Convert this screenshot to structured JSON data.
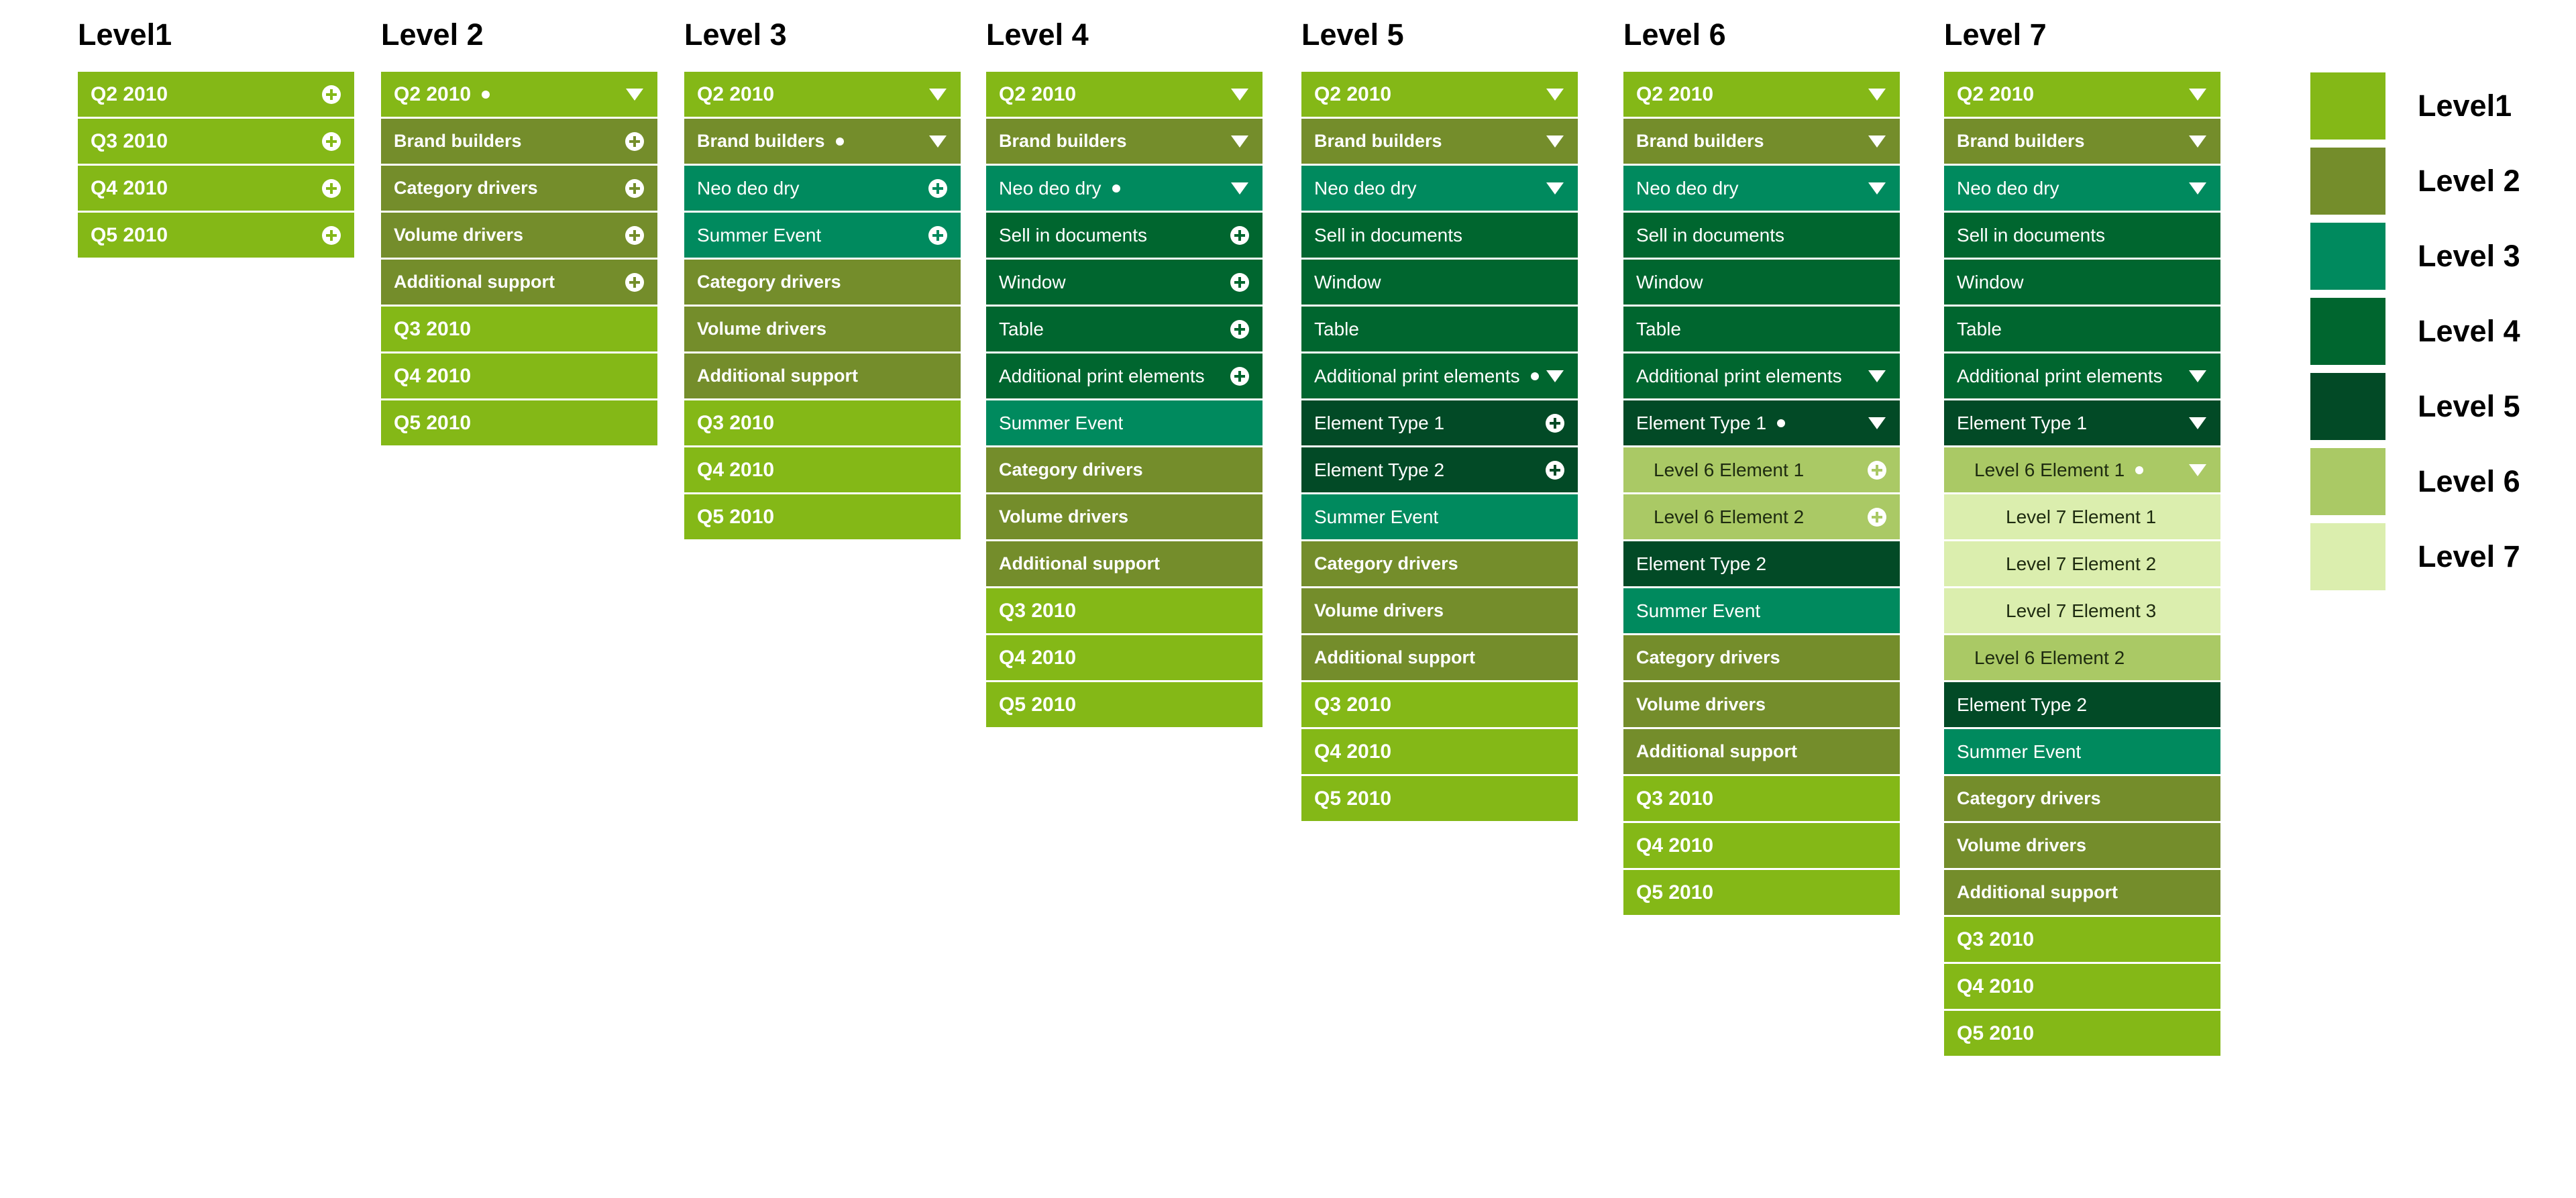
{
  "colors": {
    "level1": "#84b817",
    "level2": "#748d2b",
    "level3": "#008a5e",
    "level4": "#00662f",
    "level5": "#024a26",
    "level6": "#aac965",
    "level7": "#dbeeae"
  },
  "columns": [
    {
      "title": "Level1",
      "items": [
        {
          "label": "Q2 2010",
          "level": 1,
          "icon": "plus-icon"
        },
        {
          "label": "Q3 2010",
          "level": 1,
          "icon": "plus-icon"
        },
        {
          "label": "Q4 2010",
          "level": 1,
          "icon": "plus-icon"
        },
        {
          "label": "Q5 2010",
          "level": 1,
          "icon": "plus-icon"
        }
      ]
    },
    {
      "title": "Level 2",
      "items": [
        {
          "label": "Q2 2010",
          "level": 1,
          "dot": true,
          "icon": "chevron-down-icon"
        },
        {
          "label": "Brand builders",
          "level": 2,
          "icon": "plus-icon"
        },
        {
          "label": "Category drivers",
          "level": 2,
          "icon": "plus-icon"
        },
        {
          "label": "Volume drivers",
          "level": 2,
          "icon": "plus-icon"
        },
        {
          "label": "Additional support",
          "level": 2,
          "icon": "plus-icon"
        },
        {
          "label": "Q3 2010",
          "level": 1
        },
        {
          "label": "Q4 2010",
          "level": 1
        },
        {
          "label": "Q5 2010",
          "level": 1
        }
      ]
    },
    {
      "title": "Level 3",
      "items": [
        {
          "label": "Q2 2010",
          "level": 1,
          "icon": "chevron-down-icon"
        },
        {
          "label": "Brand builders",
          "level": 2,
          "dot": true,
          "icon": "chevron-down-icon"
        },
        {
          "label": "Neo deo dry",
          "level": 3,
          "icon": "plus-icon"
        },
        {
          "label": "Summer Event",
          "level": 3,
          "icon": "plus-icon"
        },
        {
          "label": "Category drivers",
          "level": 2
        },
        {
          "label": "Volume drivers",
          "level": 2
        },
        {
          "label": "Additional support",
          "level": 2
        },
        {
          "label": "Q3 2010",
          "level": 1
        },
        {
          "label": "Q4 2010",
          "level": 1
        },
        {
          "label": "Q5 2010",
          "level": 1
        }
      ]
    },
    {
      "title": "Level 4",
      "items": [
        {
          "label": "Q2 2010",
          "level": 1,
          "icon": "chevron-down-icon"
        },
        {
          "label": "Brand builders",
          "level": 2,
          "icon": "chevron-down-icon"
        },
        {
          "label": "Neo deo dry",
          "level": 3,
          "dot": true,
          "icon": "chevron-down-icon"
        },
        {
          "label": "Sell in documents",
          "level": 4,
          "icon": "plus-icon"
        },
        {
          "label": "Window",
          "level": 4,
          "icon": "plus-icon"
        },
        {
          "label": "Table",
          "level": 4,
          "icon": "plus-icon"
        },
        {
          "label": "Additional print elements",
          "level": 4,
          "icon": "plus-icon"
        },
        {
          "label": "Summer Event",
          "level": 3
        },
        {
          "label": "Category drivers",
          "level": 2
        },
        {
          "label": "Volume drivers",
          "level": 2
        },
        {
          "label": "Additional support",
          "level": 2
        },
        {
          "label": "Q3 2010",
          "level": 1
        },
        {
          "label": "Q4 2010",
          "level": 1
        },
        {
          "label": "Q5 2010",
          "level": 1
        }
      ]
    },
    {
      "title": "Level 5",
      "items": [
        {
          "label": "Q2 2010",
          "level": 1,
          "icon": "chevron-down-icon"
        },
        {
          "label": "Brand builders",
          "level": 2,
          "icon": "chevron-down-icon"
        },
        {
          "label": "Neo deo dry",
          "level": 3,
          "icon": "chevron-down-icon"
        },
        {
          "label": "Sell in documents",
          "level": 4
        },
        {
          "label": "Window",
          "level": 4
        },
        {
          "label": "Table",
          "level": 4
        },
        {
          "label": "Additional print elements",
          "level": 4,
          "dot": true,
          "icon": "chevron-down-icon"
        },
        {
          "label": "Element Type 1",
          "level": 5,
          "icon": "plus-icon"
        },
        {
          "label": "Element Type 2",
          "level": 5,
          "icon": "plus-icon"
        },
        {
          "label": "Summer Event",
          "level": 3
        },
        {
          "label": "Category drivers",
          "level": 2
        },
        {
          "label": "Volume drivers",
          "level": 2
        },
        {
          "label": "Additional support",
          "level": 2
        },
        {
          "label": "Q3 2010",
          "level": 1
        },
        {
          "label": "Q4 2010",
          "level": 1
        },
        {
          "label": "Q5 2010",
          "level": 1
        }
      ]
    },
    {
      "title": "Level 6",
      "items": [
        {
          "label": "Q2 2010",
          "level": 1,
          "icon": "chevron-down-icon"
        },
        {
          "label": "Brand builders",
          "level": 2,
          "icon": "chevron-down-icon"
        },
        {
          "label": "Neo deo dry",
          "level": 3,
          "icon": "chevron-down-icon"
        },
        {
          "label": "Sell in documents",
          "level": 4
        },
        {
          "label": "Window",
          "level": 4
        },
        {
          "label": "Table",
          "level": 4
        },
        {
          "label": "Additional print elements",
          "level": 4,
          "icon": "chevron-down-icon"
        },
        {
          "label": "Element Type 1",
          "level": 5,
          "dot": true,
          "icon": "chevron-down-icon"
        },
        {
          "label": "Level 6 Element 1",
          "level": 6,
          "icon": "plus-icon"
        },
        {
          "label": "Level 6 Element 2",
          "level": 6,
          "icon": "plus-icon"
        },
        {
          "label": "Element Type 2",
          "level": 5
        },
        {
          "label": "Summer Event",
          "level": 3
        },
        {
          "label": "Category drivers",
          "level": 2
        },
        {
          "label": "Volume drivers",
          "level": 2
        },
        {
          "label": "Additional support",
          "level": 2
        },
        {
          "label": "Q3 2010",
          "level": 1
        },
        {
          "label": "Q4 2010",
          "level": 1
        },
        {
          "label": "Q5 2010",
          "level": 1
        }
      ]
    },
    {
      "title": "Level 7",
      "items": [
        {
          "label": "Q2 2010",
          "level": 1,
          "icon": "chevron-down-icon"
        },
        {
          "label": "Brand builders",
          "level": 2,
          "icon": "chevron-down-icon"
        },
        {
          "label": "Neo deo dry",
          "level": 3,
          "icon": "chevron-down-icon"
        },
        {
          "label": "Sell in documents",
          "level": 4
        },
        {
          "label": "Window",
          "level": 4
        },
        {
          "label": "Table",
          "level": 4
        },
        {
          "label": "Additional print elements",
          "level": 4,
          "icon": "chevron-down-icon"
        },
        {
          "label": "Element Type 1",
          "level": 5,
          "icon": "chevron-down-icon"
        },
        {
          "label": "Level 6 Element 1",
          "level": 6,
          "dot": true,
          "icon": "chevron-down-icon"
        },
        {
          "label": "Level 7 Element 1",
          "level": 7
        },
        {
          "label": "Level 7 Element 2",
          "level": 7
        },
        {
          "label": "Level 7 Element 3",
          "level": 7
        },
        {
          "label": "Level 6 Element 2",
          "level": 6
        },
        {
          "label": "Element Type 2",
          "level": 5
        },
        {
          "label": "Summer Event",
          "level": 3
        },
        {
          "label": "Category drivers",
          "level": 2
        },
        {
          "label": "Volume drivers",
          "level": 2
        },
        {
          "label": "Additional support",
          "level": 2
        },
        {
          "label": "Q3 2010",
          "level": 1
        },
        {
          "label": "Q4 2010",
          "level": 1
        },
        {
          "label": "Q5 2010",
          "level": 1
        }
      ]
    }
  ],
  "legend": [
    {
      "label": "Level1",
      "level": 1
    },
    {
      "label": "Level 2",
      "level": 2
    },
    {
      "label": "Level 3",
      "level": 3
    },
    {
      "label": "Level 4",
      "level": 4
    },
    {
      "label": "Level 5",
      "level": 5
    },
    {
      "label": "Level 6",
      "level": 6
    },
    {
      "label": "Level 7",
      "level": 7
    }
  ]
}
